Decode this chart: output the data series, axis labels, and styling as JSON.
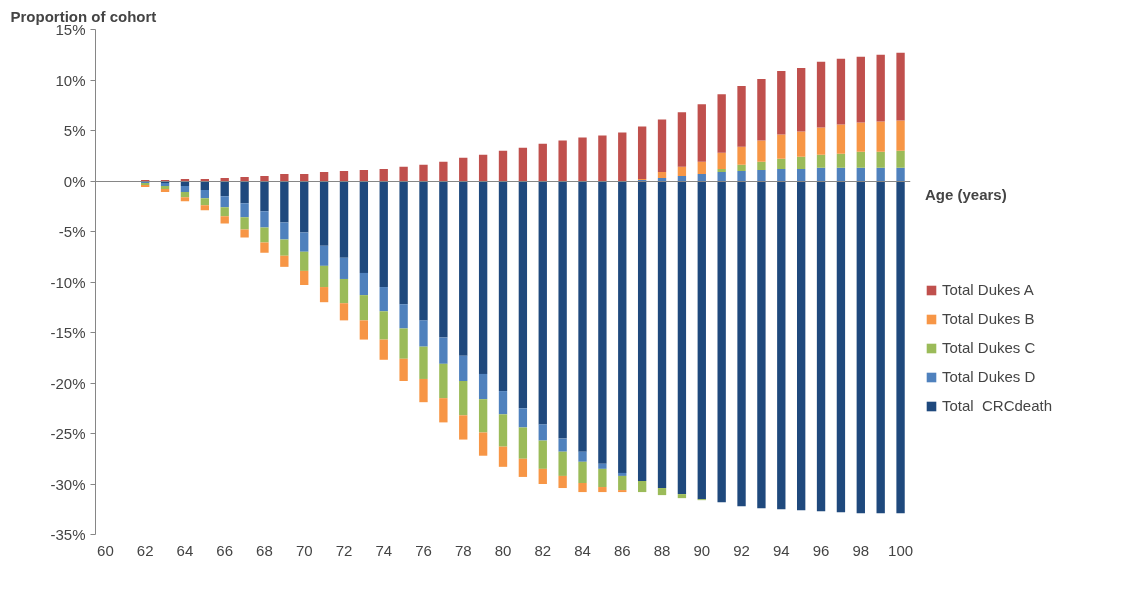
{
  "chart_data": {
    "type": "bar",
    "stacked": true,
    "xlabel": "Age (years)",
    "ylabel": "Proportion of cohort",
    "x": [
      62,
      63,
      64,
      65,
      66,
      67,
      68,
      69,
      70,
      71,
      72,
      73,
      74,
      75,
      76,
      77,
      78,
      79,
      80,
      81,
      82,
      83,
      84,
      85,
      86,
      87,
      88,
      89,
      90,
      91,
      92,
      93,
      94,
      95,
      96,
      97,
      98,
      99,
      100
    ],
    "series": [
      {
        "name": "Total  CRCdeath",
        "color": "#1f497d",
        "values": [
          -0.1,
          -0.2,
          -0.5,
          -0.9,
          -1.5,
          -2.2,
          -3.0,
          -4.1,
          -5.1,
          -6.4,
          -7.6,
          -9.1,
          -10.5,
          -12.2,
          -13.8,
          -15.5,
          -17.3,
          -19.1,
          -20.8,
          -22.5,
          -24.1,
          -25.5,
          -26.8,
          -28.0,
          -28.9,
          -29.7,
          -30.4,
          -31.0,
          -31.5,
          -31.8,
          -32.2,
          -32.4,
          -32.5,
          -32.6,
          -32.7,
          -32.8,
          -32.9,
          -32.9,
          -32.9
        ]
      },
      {
        "name": "Total Dukes D",
        "color": "#4f81bd",
        "values": [
          -0.1,
          -0.3,
          -0.6,
          -0.8,
          -1.1,
          -1.4,
          -1.6,
          -1.7,
          -1.9,
          -2.0,
          -2.1,
          -2.2,
          -2.4,
          -2.4,
          -2.6,
          -2.6,
          -2.5,
          -2.5,
          -2.3,
          -1.9,
          -1.6,
          -1.3,
          -1.0,
          -0.5,
          -0.3,
          0.1,
          0.3,
          0.5,
          0.7,
          0.9,
          1.0,
          1.1,
          1.2,
          1.2,
          1.3,
          1.3,
          1.3,
          1.3,
          1.3
        ]
      },
      {
        "name": "Total Dukes C",
        "color": "#9bbb59",
        "values": [
          -0.2,
          -0.3,
          -0.5,
          -0.7,
          -0.9,
          -1.2,
          -1.5,
          -1.6,
          -1.9,
          -2.1,
          -2.4,
          -2.5,
          -2.8,
          -3.0,
          -3.2,
          -3.4,
          -3.4,
          -3.3,
          -3.2,
          -3.1,
          -2.8,
          -2.4,
          -2.1,
          -1.8,
          -1.4,
          -1.1,
          -0.7,
          -0.4,
          -0.1,
          0.3,
          0.6,
          0.8,
          1.0,
          1.2,
          1.3,
          1.4,
          1.6,
          1.6,
          1.7
        ]
      },
      {
        "name": "Total Dukes B",
        "color": "#f79646",
        "values": [
          -0.2,
          -0.3,
          -0.4,
          -0.5,
          -0.7,
          -0.8,
          -1.0,
          -1.1,
          -1.4,
          -1.5,
          -1.7,
          -1.9,
          -2.0,
          -2.2,
          -2.3,
          -2.4,
          -2.4,
          -2.3,
          -2.0,
          -1.8,
          -1.5,
          -1.2,
          -0.9,
          -0.5,
          -0.2,
          0.1,
          0.6,
          0.9,
          1.2,
          1.6,
          1.8,
          2.1,
          2.4,
          2.5,
          2.7,
          2.9,
          2.9,
          3.0,
          3.0
        ]
      },
      {
        "name": "Total Dukes A",
        "color": "#c0504d",
        "values": [
          0.1,
          0.1,
          0.2,
          0.2,
          0.3,
          0.4,
          0.5,
          0.7,
          0.7,
          0.9,
          1.0,
          1.1,
          1.2,
          1.4,
          1.6,
          1.9,
          2.3,
          2.6,
          3.0,
          3.3,
          3.7,
          4.0,
          4.3,
          4.5,
          4.8,
          5.2,
          5.2,
          5.4,
          5.7,
          5.8,
          6.0,
          6.1,
          6.3,
          6.3,
          6.5,
          6.5,
          6.5,
          6.6,
          6.7
        ]
      }
    ],
    "xlim": [
      59.5,
      100.5
    ],
    "xticks": [
      60,
      62,
      64,
      66,
      68,
      70,
      72,
      74,
      76,
      78,
      80,
      82,
      84,
      86,
      88,
      90,
      92,
      94,
      96,
      98,
      100
    ],
    "ylim": [
      -35,
      15
    ],
    "yticks": [
      {
        "value": -35,
        "label": "-35%"
      },
      {
        "value": -30,
        "label": "-30%"
      },
      {
        "value": -25,
        "label": "-25%"
      },
      {
        "value": -20,
        "label": "-20%"
      },
      {
        "value": -15,
        "label": "-15%"
      },
      {
        "value": -10,
        "label": "-10%"
      },
      {
        "value": -5,
        "label": "-5%"
      },
      {
        "value": 0,
        "label": "0%"
      },
      {
        "value": 5,
        "label": "5%"
      },
      {
        "value": 10,
        "label": "10%"
      },
      {
        "value": 15,
        "label": "15%"
      }
    ],
    "legend": "right"
  }
}
